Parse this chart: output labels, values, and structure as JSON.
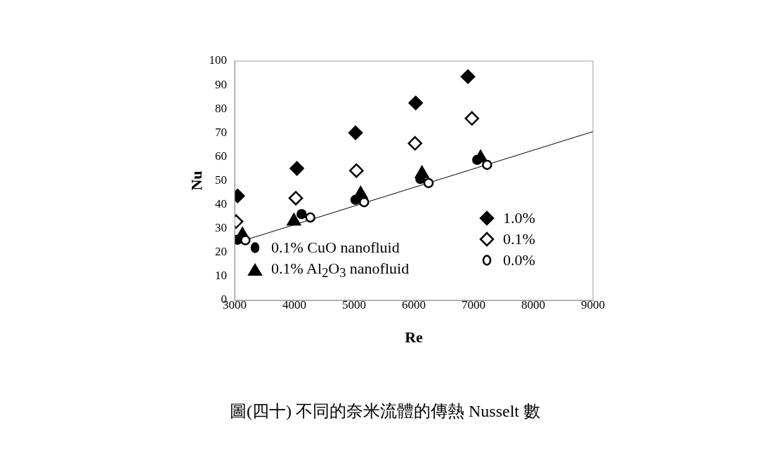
{
  "chart_data": {
    "type": "scatter",
    "xlabel": "Re",
    "ylabel": "Nu",
    "series": [
      {
        "name": "1.0%",
        "color": "#000000",
        "marker": "diamond",
        "x": [
          3050,
          4043,
          5024,
          6032,
          6906
        ],
        "values": [
          43.6,
          55.1,
          70.0,
          82.5,
          93.5
        ]
      },
      {
        "name": "0.1%",
        "color": "#ffffff",
        "marker": "diamond",
        "x": [
          3024,
          4024,
          5039,
          6020,
          6973
        ],
        "values": [
          32.9,
          42.7,
          54.2,
          65.6,
          76.0
        ]
      },
      {
        "name": "0.0%",
        "color": "#ffffff",
        "marker": "circle",
        "x": [
          3180,
          4267,
          5168,
          6247,
          7227
        ],
        "values": [
          25.1,
          34.6,
          41.0,
          49.0,
          56.6
        ]
      },
      {
        "name": "0.1% CuO nanofluid",
        "color": "#000000",
        "marker": "circle",
        "x": [
          3050,
          4121,
          5024,
          6110,
          7062
        ],
        "values": [
          25.3,
          36.0,
          42.0,
          50.7,
          58.7
        ]
      },
      {
        "name": "0.1% Al$_{2}$O$_{3}$ nanofluid",
        "color": "#000000",
        "marker": "triangle",
        "x": [
          3130,
          3992,
          5110,
          6137,
          7118
        ],
        "values": [
          27.3,
          33.1,
          44.4,
          52.9,
          59.5
        ]
      },
      {
        "type": "line",
        "color": "#000000",
        "marker": "none",
        "x": [
          3180,
          9000
        ],
        "values": [
          25.2,
          70.5
        ]
      }
    ],
    "xlim": [
      3000,
      9000
    ],
    "xticks": [
      3000,
      4000,
      5000,
      6000,
      7000,
      8000,
      9000
    ],
    "ylim": [
      0,
      100
    ],
    "yticks": [
      0,
      10,
      20,
      30,
      40,
      50,
      60,
      70,
      80,
      90,
      100
    ],
    "grid": false,
    "legend": "bottom",
    "annotations": [
      "圖(四十) 不同的奈米流體的傳熱 Nusselt 數"
    ]
  }
}
